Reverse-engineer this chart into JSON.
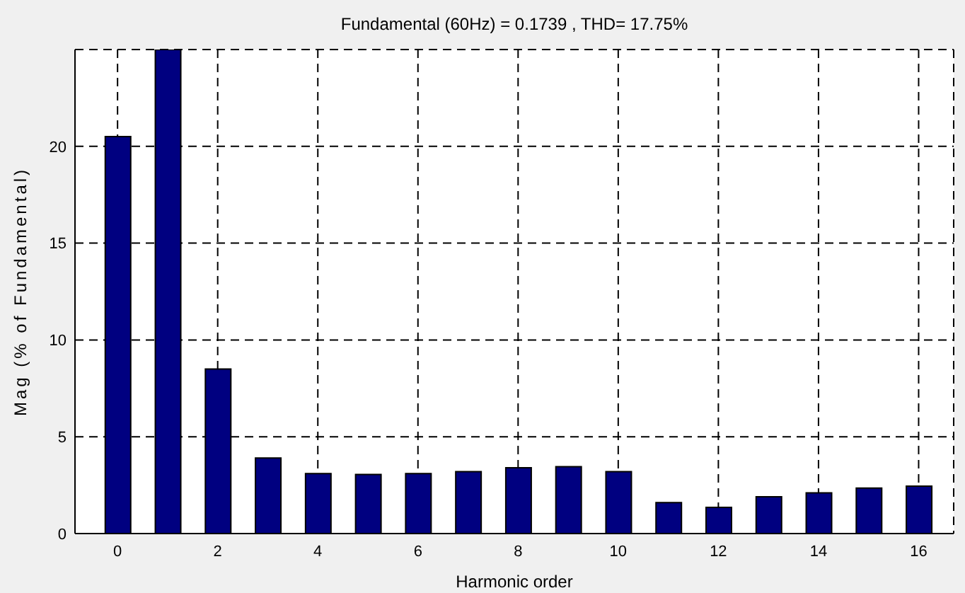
{
  "chart_data": {
    "type": "bar",
    "title": "Fundamental (60Hz) = 0.1739 , THD= 17.75%",
    "xlabel": "Harmonic order",
    "ylabel": "Mag (% of Fundamental)",
    "x": [
      0,
      1,
      2,
      3,
      4,
      5,
      6,
      7,
      8,
      9,
      10,
      11,
      12,
      13,
      14,
      15,
      16
    ],
    "values": [
      20.5,
      25,
      8.5,
      3.9,
      3.1,
      3.05,
      3.1,
      3.2,
      3.4,
      3.45,
      3.2,
      1.6,
      1.35,
      1.9,
      2.1,
      2.35,
      2.45
    ],
    "color": "#000080",
    "xlim": [
      -0.85,
      16.7
    ],
    "xticks": [
      0,
      2,
      4,
      6,
      8,
      10,
      12,
      14,
      16
    ],
    "ylim": [
      0,
      25
    ],
    "yticks": [
      0,
      5,
      10,
      15,
      20
    ],
    "grid": true,
    "line_style": "dashed"
  }
}
